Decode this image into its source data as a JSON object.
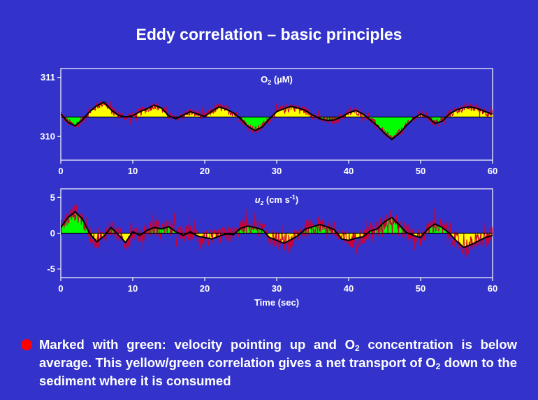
{
  "slide": {
    "title": "Eddy correlation – basic principles",
    "bullet": {
      "part1": "Marked with green:  velocity pointing up and O",
      "sub1": "2",
      "part2": " concentration is below average. This yellow/green  correlation gives a net transport of O",
      "sub2": "2",
      "part3": " down to the sediment where it is consumed"
    }
  },
  "colors": {
    "background": "#3333cc",
    "panel": "#3333cc",
    "positive_fill_top": "#ffff00",
    "negative_fill_top": "#00ff00",
    "positive_fill_bottom": "#00ff00",
    "negative_fill_bottom": "#ffff00",
    "raw_signal": "#cc0033",
    "smoothed_signal": "#000000",
    "bullet": "#ff0000"
  },
  "chart_data": [
    {
      "type": "area",
      "title_main": "O",
      "title_sub": "2",
      "title_unit": "  (µM)",
      "xlim": [
        0,
        60
      ],
      "ylim": [
        309.6,
        311.15
      ],
      "mean": 310.33,
      "xticks": [
        0,
        10,
        20,
        30,
        40,
        50,
        60
      ],
      "yticks": [
        310,
        311
      ],
      "fill_above_mean": "yellow",
      "fill_below_mean": "green",
      "smoothed": {
        "x": [
          0,
          1,
          2,
          3,
          4,
          5,
          6,
          7,
          8,
          9,
          10,
          11,
          12,
          13,
          14,
          15,
          16,
          17,
          18,
          19,
          20,
          21,
          22,
          23,
          24,
          25,
          26,
          27,
          28,
          29,
          30,
          31,
          32,
          33,
          34,
          35,
          36,
          37,
          38,
          39,
          40,
          41,
          42,
          43,
          44,
          45,
          46,
          47,
          48,
          49,
          50,
          51,
          52,
          53,
          54,
          55,
          56,
          57,
          58,
          59,
          60
        ],
        "y": [
          310.38,
          310.24,
          310.18,
          310.28,
          310.42,
          310.52,
          310.58,
          310.45,
          310.36,
          310.33,
          310.35,
          310.42,
          310.47,
          310.53,
          310.48,
          310.35,
          310.3,
          310.36,
          310.42,
          310.38,
          310.34,
          310.43,
          310.5,
          310.46,
          310.4,
          310.3,
          310.17,
          310.1,
          310.16,
          310.3,
          310.42,
          310.47,
          310.51,
          310.48,
          310.44,
          310.36,
          310.3,
          310.27,
          310.28,
          310.33,
          310.4,
          310.44,
          310.38,
          310.28,
          310.18,
          310.05,
          309.95,
          310.05,
          310.18,
          310.3,
          310.38,
          310.33,
          310.22,
          310.26,
          310.38,
          310.45,
          310.49,
          310.5,
          310.47,
          310.42,
          310.38
        ]
      }
    },
    {
      "type": "area",
      "title_main": "u",
      "title_main_sub": "z",
      "title_unit": "  (cm s",
      "title_sup": "-1",
      "title_close": ")",
      "xlabel": "Time  (sec)",
      "xlim": [
        0,
        60
      ],
      "ylim": [
        -6.2,
        6.2
      ],
      "mean": 0,
      "xticks": [
        0,
        10,
        20,
        30,
        40,
        50,
        60
      ],
      "yticks": [
        5,
        0,
        -5
      ],
      "fill_above_mean": "green",
      "fill_below_mean": "yellow",
      "smoothed": {
        "x": [
          0,
          1,
          2,
          3,
          4,
          5,
          6,
          7,
          8,
          9,
          10,
          11,
          12,
          13,
          14,
          15,
          16,
          17,
          18,
          19,
          20,
          21,
          22,
          23,
          24,
          25,
          26,
          27,
          28,
          29,
          30,
          31,
          32,
          33,
          34,
          35,
          36,
          37,
          38,
          39,
          40,
          41,
          42,
          43,
          44,
          45,
          46,
          47,
          48,
          49,
          50,
          51,
          52,
          53,
          54,
          55,
          56,
          57,
          58,
          59,
          60
        ],
        "y": [
          0.8,
          2.2,
          3.0,
          2.0,
          0.0,
          -1.2,
          -0.4,
          0.8,
          -0.2,
          -1.3,
          0.2,
          -0.3,
          0.4,
          0.8,
          0.6,
          0.9,
          0.2,
          -0.3,
          0.2,
          -0.4,
          -0.6,
          -0.8,
          -0.4,
          -0.1,
          -0.2,
          0.7,
          1.0,
          0.8,
          0.5,
          -0.6,
          -1.0,
          -1.4,
          -0.9,
          -0.3,
          0.6,
          0.9,
          1.2,
          0.9,
          0.5,
          -0.8,
          -1.0,
          -0.7,
          -0.5,
          0.3,
          0.6,
          1.6,
          2.2,
          1.2,
          0.1,
          -0.3,
          -0.6,
          0.6,
          1.3,
          0.8,
          0.0,
          -1.1,
          -2.0,
          -1.6,
          -1.1,
          -0.6,
          -0.3
        ]
      }
    }
  ]
}
